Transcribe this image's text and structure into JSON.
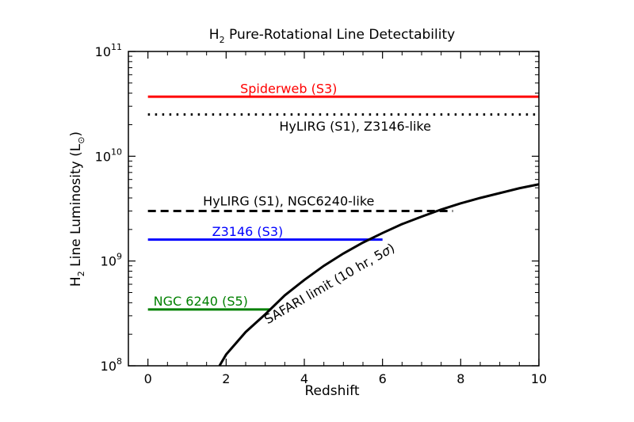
{
  "chart_data": {
    "type": "line",
    "title_main": "H",
    "title_sub": "2",
    "title_rest": " Pure-Rotational Line Detectability",
    "xlabel": "Redshift",
    "ylabel_main": "H",
    "ylabel_sub": "2",
    "ylabel_rest": " Line Luminosity (L",
    "ylabel_sun": "⊙",
    "ylabel_close": ")",
    "xlim": [
      -0.5,
      10
    ],
    "ylim": [
      100000000.0,
      100000000000.0
    ],
    "yscale": "log",
    "x_ticks": [
      {
        "value": 0,
        "label": "0"
      },
      {
        "value": 2,
        "label": "2"
      },
      {
        "value": 4,
        "label": "4"
      },
      {
        "value": 6,
        "label": "6"
      },
      {
        "value": 8,
        "label": "8"
      },
      {
        "value": 10,
        "label": "10"
      }
    ],
    "y_ticks": [
      {
        "value": 100000000.0,
        "base": "10",
        "exp": "8"
      },
      {
        "value": 1000000000.0,
        "base": "10",
        "exp": "9"
      },
      {
        "value": 10000000000.0,
        "base": "10",
        "exp": "10"
      },
      {
        "value": 100000000000.0,
        "base": "10",
        "exp": "11"
      }
    ],
    "series": [
      {
        "name": "Spiderweb (S3)",
        "color": "#ff0000",
        "dash": "solid",
        "x": [
          0,
          10
        ],
        "y": [
          37000000000.0,
          37000000000.0
        ]
      },
      {
        "name": "HyLIRG (S1), Z3146-like",
        "color": "#000000",
        "dash": "dotted",
        "x": [
          0,
          10
        ],
        "y": [
          25000000000.0,
          25000000000.0
        ]
      },
      {
        "name": "HyLIRG (S1), NGC6240-like",
        "color": "#000000",
        "dash": "dashed",
        "x": [
          0,
          7.8
        ],
        "y": [
          3000000000.0,
          3000000000.0
        ]
      },
      {
        "name": "Z3146 (S3)",
        "color": "#0000ff",
        "dash": "solid",
        "x": [
          0,
          6.0
        ],
        "y": [
          1600000000.0,
          1600000000.0
        ]
      },
      {
        "name": "NGC 6240 (S5)",
        "color": "#008000",
        "dash": "solid",
        "x": [
          0,
          3.15
        ],
        "y": [
          345000000.0,
          345000000.0
        ]
      },
      {
        "name": "SAFARI limit",
        "color": "#000000",
        "dash": "solid",
        "x": [
          1.83,
          2.0,
          2.5,
          3.0,
          3.5,
          4.0,
          4.5,
          5.0,
          5.5,
          6.0,
          6.5,
          7.0,
          7.5,
          8.0,
          8.5,
          9.0,
          9.5,
          10.0
        ],
        "y": [
          100000000.0,
          128000000.0,
          210000000.0,
          310000000.0,
          470000000.0,
          660000000.0,
          900000000.0,
          1180000000.0,
          1500000000.0,
          1850000000.0,
          2250000000.0,
          2650000000.0,
          3100000000.0,
          3550000000.0,
          4000000000.0,
          4450000000.0,
          4950000000.0,
          5400000000.0
        ]
      }
    ],
    "annotations": [
      {
        "name": "spiderweb-label",
        "text": "Spiderweb (S3)",
        "x": 3.6,
        "y": 44500000000.0,
        "color": "#ff0000",
        "anchor": "middle",
        "rotate": 0
      },
      {
        "name": "hylirg-z3146-label",
        "text": "HyLIRG (S1), Z3146-like",
        "x": 5.3,
        "y": 19500000000.0,
        "color": "#000000",
        "anchor": "middle",
        "rotate": 0
      },
      {
        "name": "hylirg-ngc6240-label",
        "text": "HyLIRG (S1), NGC6240-like",
        "x": 3.6,
        "y": 3750000000.0,
        "color": "#000000",
        "anchor": "middle",
        "rotate": 0
      },
      {
        "name": "z3146-label",
        "text": "Z3146 (S3)",
        "x": 2.55,
        "y": 1920000000.0,
        "color": "#0000ff",
        "anchor": "middle",
        "rotate": 0
      },
      {
        "name": "ngc6240-label",
        "text": "NGC 6240 (S5)",
        "x": 1.35,
        "y": 415000000.0,
        "color": "#008000",
        "anchor": "middle",
        "rotate": 0
      }
    ],
    "safari_label": {
      "prefix": "SAFARI limit (10 hr, 5",
      "sigma": "σ",
      "suffix": ")",
      "x": 4.7,
      "y": 560000000.0,
      "rotate": -30
    },
    "grid": false,
    "legend": "none"
  }
}
